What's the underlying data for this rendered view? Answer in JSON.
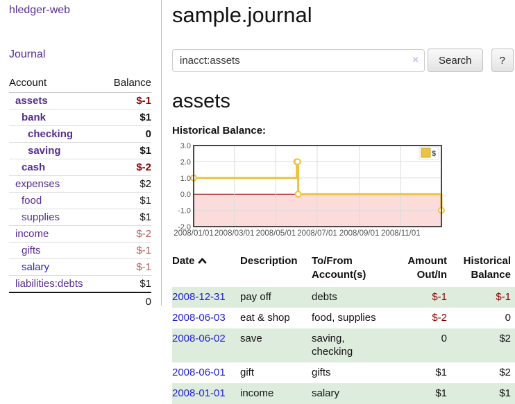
{
  "app": {
    "title": "hledger-web"
  },
  "sidebar": {
    "journal_link": "Journal",
    "accounts_table": {
      "headers": {
        "account": "Account",
        "balance": "Balance"
      },
      "rows": [
        {
          "name": "assets",
          "balance": "$-1"
        },
        {
          "name": "bank",
          "balance": "$1"
        },
        {
          "name": "checking",
          "balance": "0"
        },
        {
          "name": "saving",
          "balance": "$1"
        },
        {
          "name": "cash",
          "balance": "$-2"
        },
        {
          "name": "expenses",
          "balance": "$2"
        },
        {
          "name": "food",
          "balance": "$1"
        },
        {
          "name": "supplies",
          "balance": "$1"
        },
        {
          "name": "income",
          "balance": "$-2"
        },
        {
          "name": "gifts",
          "balance": "$-1"
        },
        {
          "name": "salary",
          "balance": "$-1"
        },
        {
          "name": "liabilities:debts",
          "balance": "$1"
        }
      ],
      "total": "0"
    }
  },
  "main": {
    "title": "sample.journal",
    "search": {
      "value": "inacct:assets",
      "clear_icon": "×",
      "button_label": "Search",
      "help_label": "?"
    },
    "account_heading": "assets",
    "chart_heading": "Historical Balance:"
  },
  "chart_data": {
    "type": "line",
    "title": "Historical Balance",
    "step": true,
    "series": [
      {
        "name": "$",
        "color": "#edc240",
        "x": [
          "2008-01-01",
          "2008-06-01",
          "2008-06-02",
          "2008-06-03",
          "2008-12-31"
        ],
        "values": [
          1,
          2,
          2,
          0,
          -1
        ]
      }
    ],
    "ylim": [
      -2,
      3
    ],
    "yticks": [
      "3.0",
      "2.0",
      "1.0",
      "0.0",
      "-1.0",
      "-2.0"
    ],
    "xticks": [
      "2008/01/01",
      "2008/03/01",
      "2008/05/01",
      "2008/07/01",
      "2008/09/01",
      "2008/11/01"
    ],
    "legend": {
      "label": "$",
      "position": "top-right"
    },
    "grid": true,
    "negative_region_color": "#fcdbdb",
    "zero_line_color": "#8b0000"
  },
  "table": {
    "headers": {
      "date": "Date",
      "description": "Description",
      "account": "To/From Account(s)",
      "amount": "Amount Out/In",
      "balance": "Historical Balance"
    },
    "rows": [
      {
        "date": "2008-12-31",
        "description": "pay off",
        "account": "debts",
        "amount": "$-1",
        "balance": "$-1"
      },
      {
        "date": "2008-06-03",
        "description": "eat & shop",
        "account": "food, supplies",
        "amount": "$-2",
        "balance": "0"
      },
      {
        "date": "2008-06-02",
        "description": "save",
        "account": "saving,\nchecking",
        "amount": "0",
        "balance": "$2"
      },
      {
        "date": "2008-06-01",
        "description": "gift",
        "account": "gifts",
        "amount": "$1",
        "balance": "$2"
      },
      {
        "date": "2008-01-01",
        "description": "income",
        "account": "salary",
        "amount": "$1",
        "balance": "$1"
      }
    ]
  }
}
